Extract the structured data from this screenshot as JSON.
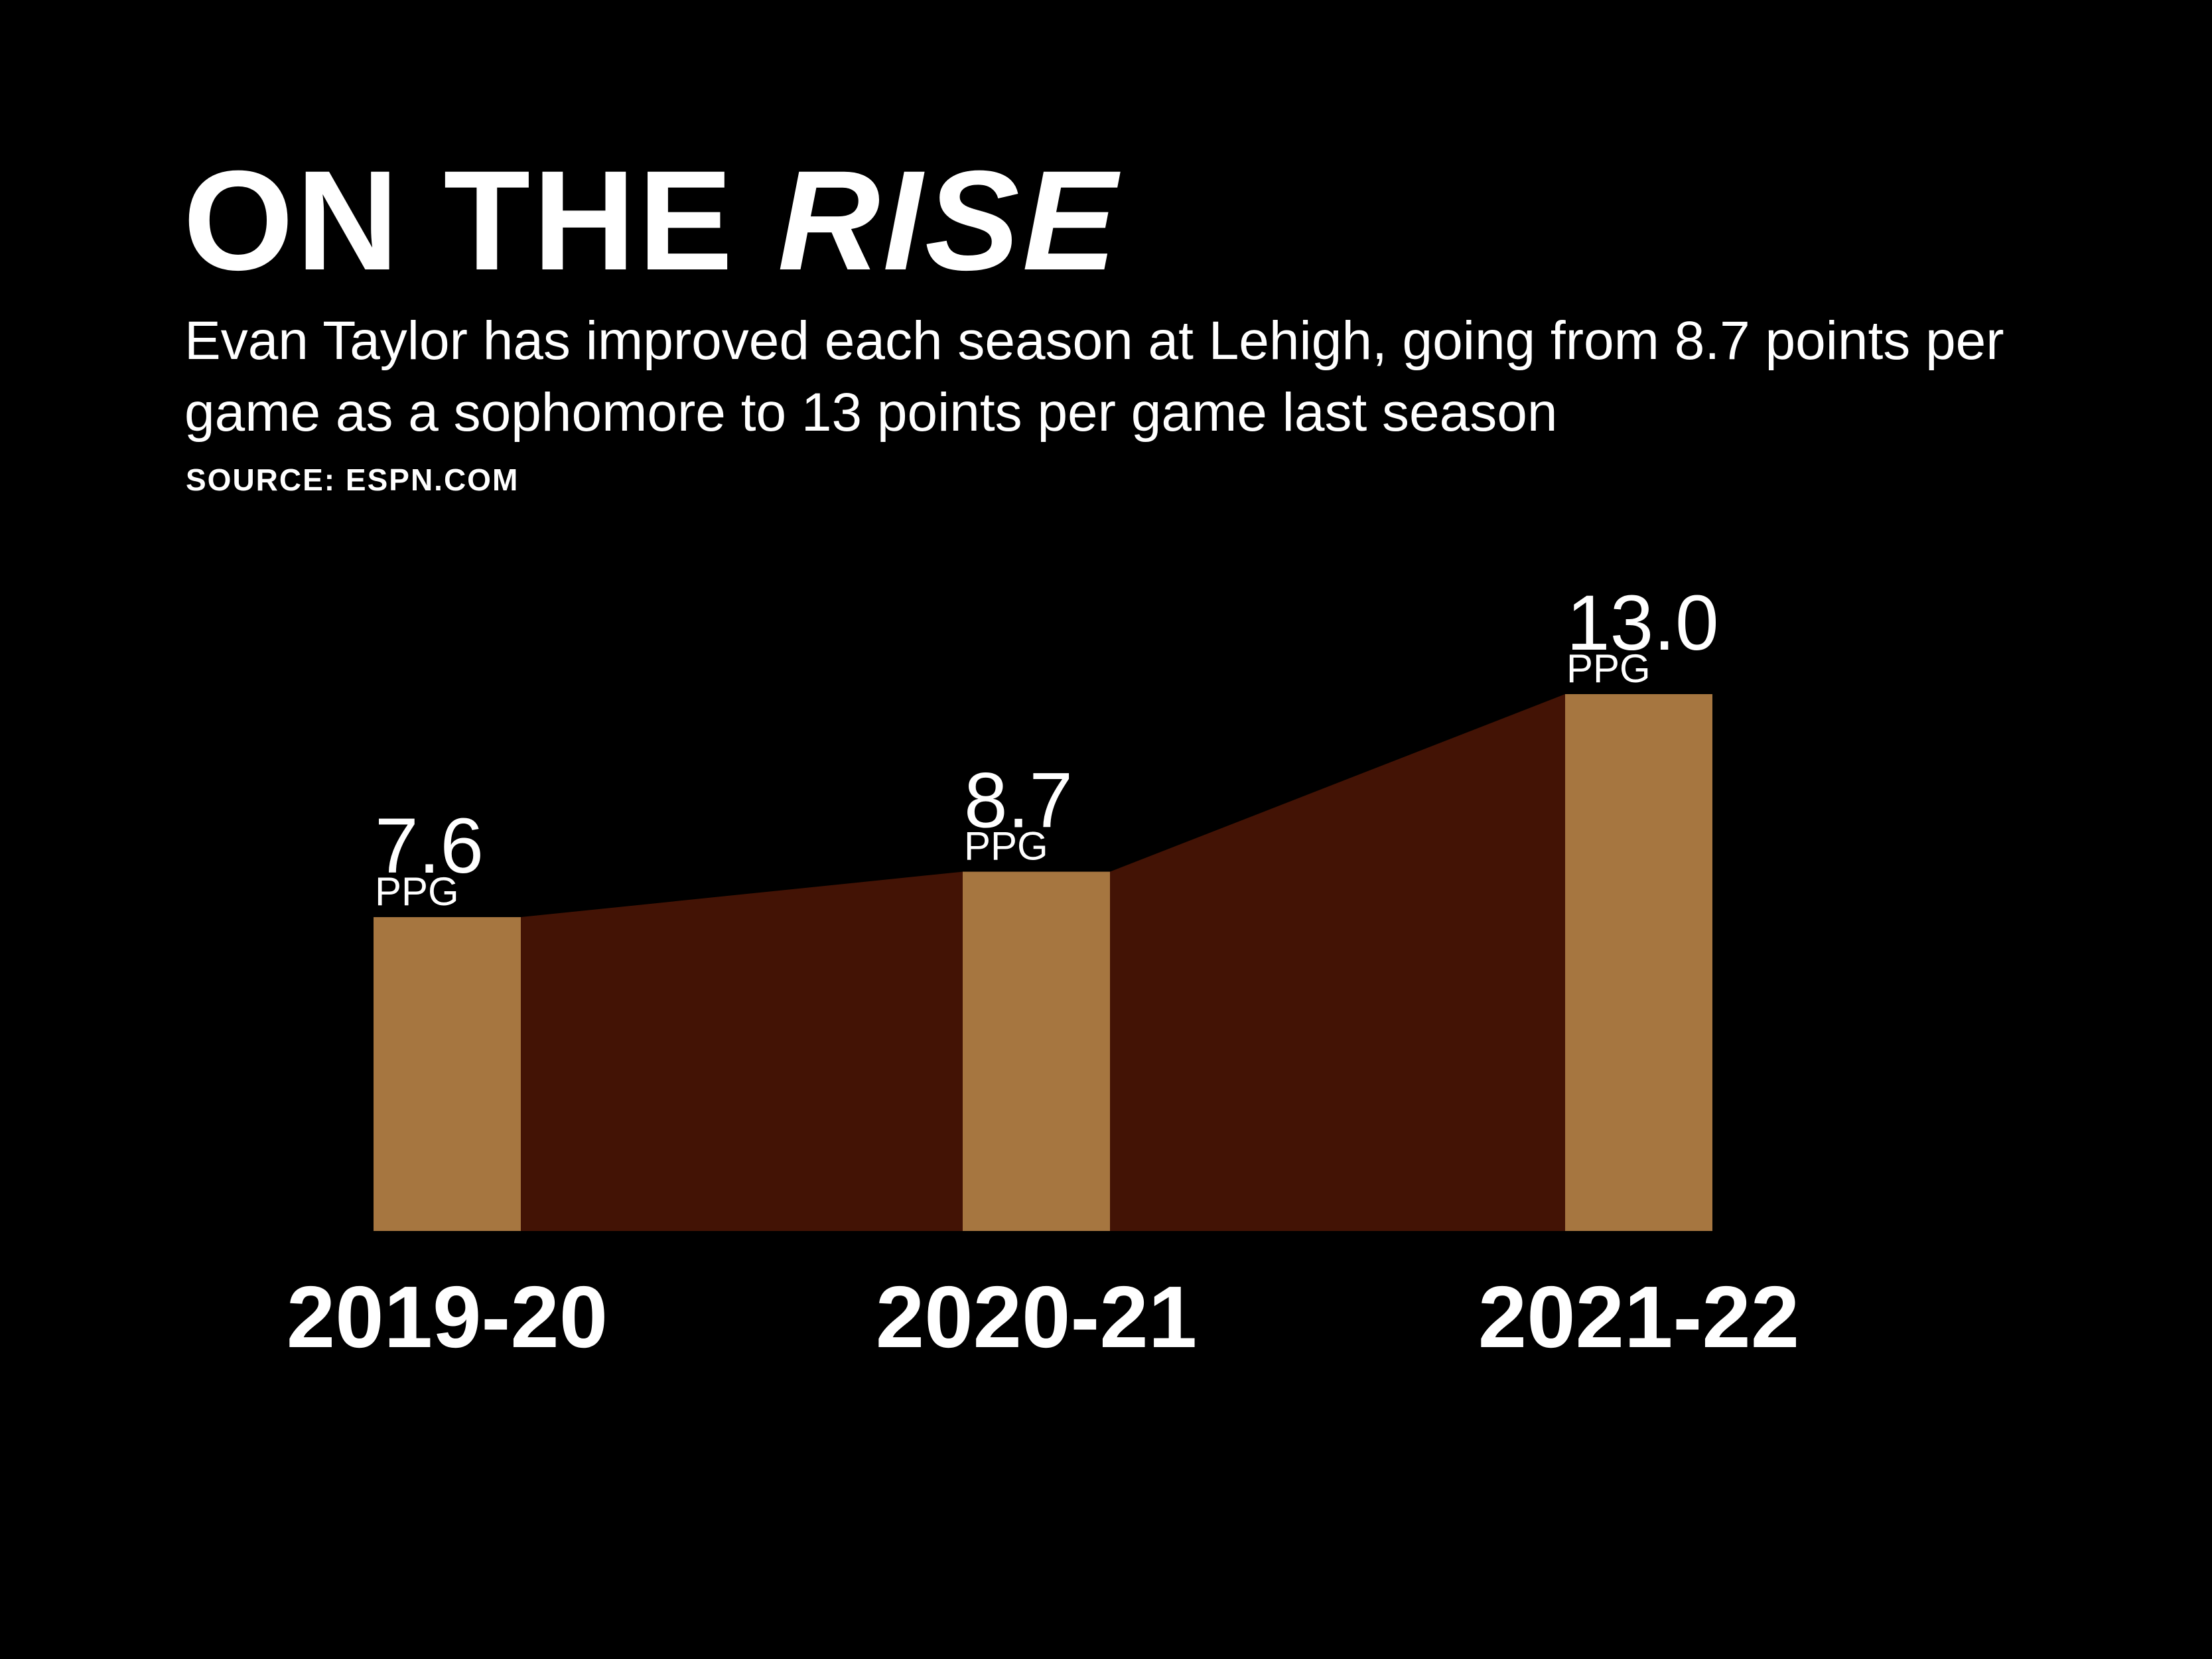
{
  "header": {
    "title_main": "ON THE ",
    "title_emphasis": "RISE",
    "subtitle": "Evan Taylor has improved each season at Lehigh, going from 8.7 points per game as a sophomore to 13 points per game last season",
    "source": "SOURCE: ESPN.COM"
  },
  "colors": {
    "background": "#000000",
    "bar": "#a67640",
    "area": "#431305",
    "text": "#ffffff"
  },
  "chart_data": {
    "type": "bar",
    "title": "ON THE RISE",
    "subtitle": "Evan Taylor has improved each season at Lehigh, going from 8.7 points per game as a sophomore to 13 points per game last season",
    "categories": [
      "2019-20",
      "2020-21",
      "2021-22"
    ],
    "values": [
      7.6,
      8.7,
      13.0
    ],
    "value_labels": [
      "7.6",
      "8.7",
      "13.0"
    ],
    "unit_label": "PPG",
    "xlabel": "",
    "ylabel": "",
    "ylim": [
      0,
      13.0
    ],
    "grid": false,
    "connecting_area": true
  }
}
